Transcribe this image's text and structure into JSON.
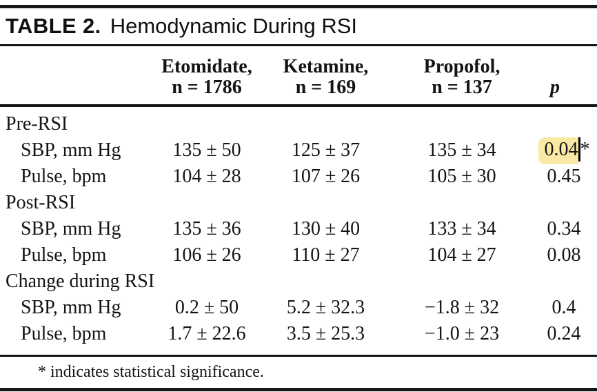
{
  "title": {
    "label": "TABLE 2.",
    "text": "Hemodynamic During RSI"
  },
  "header": {
    "columns": [
      {
        "name": "Etomidate,",
        "n": "n = 1786"
      },
      {
        "name": "Ketamine,",
        "n": "n = 169"
      },
      {
        "name": "Propofol,",
        "n": "n = 137"
      }
    ],
    "p_label": "p"
  },
  "sections": [
    {
      "label": "Pre-RSI",
      "rows": [
        {
          "label": "SBP, mm Hg",
          "etomidate": "135 ± 50",
          "ketamine": "125 ± 37",
          "propofol": "135 ± 34",
          "p": "0.04",
          "p_suffix": "*",
          "highlighted": true
        },
        {
          "label": "Pulse, bpm",
          "etomidate": "104 ± 28",
          "ketamine": "107 ± 26",
          "propofol": "105 ± 30",
          "p": "0.45"
        }
      ]
    },
    {
      "label": "Post-RSI",
      "rows": [
        {
          "label": "SBP, mm Hg",
          "etomidate": "135 ± 36",
          "ketamine": "130 ± 40",
          "propofol": "133 ± 34",
          "p": "0.34"
        },
        {
          "label": "Pulse, bpm",
          "etomidate": "106 ± 26",
          "ketamine": "110 ± 27",
          "propofol": "104 ± 27",
          "p": "0.08"
        }
      ]
    },
    {
      "label": "Change during RSI",
      "rows": [
        {
          "label": "SBP, mm Hg",
          "etomidate": "0.2 ± 50",
          "ketamine": "5.2 ± 32.3",
          "propofol": "−1.8 ± 32",
          "p": "0.4"
        },
        {
          "label": "Pulse, bpm",
          "etomidate": "1.7 ± 22.6",
          "ketamine": "3.5 ± 25.3",
          "propofol": "−1.0 ± 23",
          "p": "0.24"
        }
      ]
    }
  ],
  "footnote": "* indicates statistical significance.",
  "colors": {
    "highlight": "#fae9a4",
    "text": "#141414",
    "rule": "#161616"
  }
}
